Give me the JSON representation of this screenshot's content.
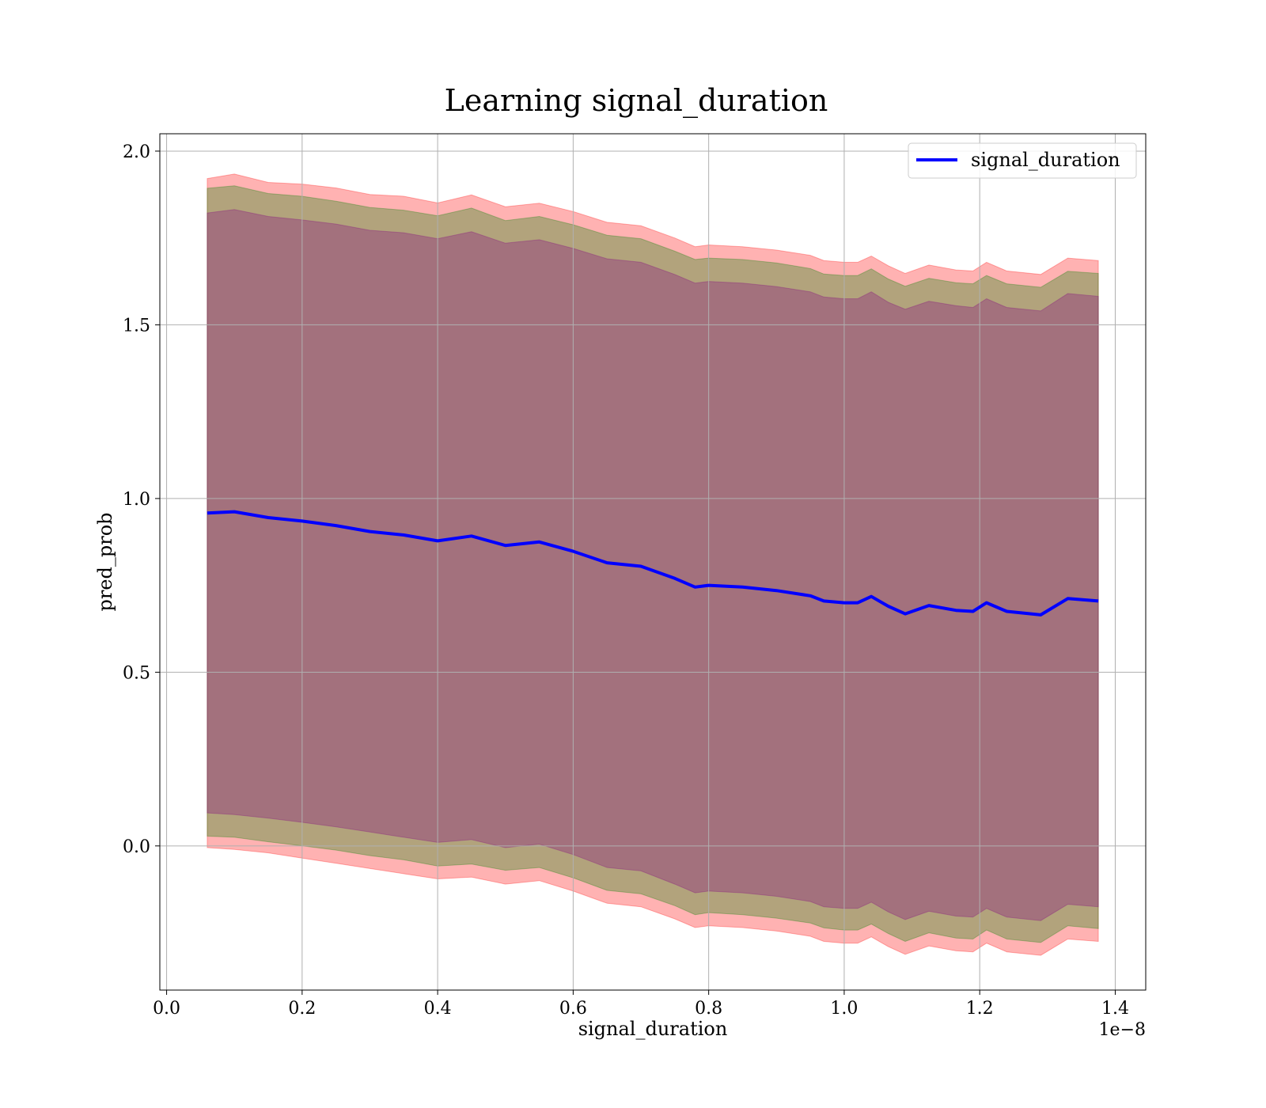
{
  "chart_data": {
    "type": "area",
    "title": "Learning signal_duration",
    "xlabel": "signal_duration",
    "ylabel": "pred_prob",
    "x_offset_label": "1e−8",
    "xlim": [
      -0.01,
      1.445
    ],
    "ylim": [
      -0.415,
      2.05
    ],
    "x_ticks": [
      0.0,
      0.2,
      0.4,
      0.6,
      0.8,
      1.0,
      1.2,
      1.4
    ],
    "x_tick_labels": [
      "0.0",
      "0.2",
      "0.4",
      "0.6",
      "0.8",
      "1.0",
      "1.2",
      "1.4"
    ],
    "y_ticks": [
      0.0,
      0.5,
      1.0,
      1.5,
      2.0
    ],
    "y_tick_labels": [
      "0.0",
      "0.5",
      "1.0",
      "1.5",
      "2.0"
    ],
    "grid": true,
    "legend_position": "top-right",
    "x": [
      0.06,
      0.1,
      0.15,
      0.2,
      0.25,
      0.3,
      0.35,
      0.4,
      0.45,
      0.5,
      0.55,
      0.6,
      0.65,
      0.7,
      0.75,
      0.78,
      0.8,
      0.85,
      0.9,
      0.95,
      0.97,
      1.0,
      1.02,
      1.04,
      1.065,
      1.09,
      1.125,
      1.165,
      1.19,
      1.21,
      1.24,
      1.29,
      1.33,
      1.375
    ],
    "series": [
      {
        "name": "signal_duration",
        "values": [
          0.958,
          0.962,
          0.945,
          0.935,
          0.922,
          0.905,
          0.895,
          0.878,
          0.892,
          0.865,
          0.875,
          0.848,
          0.815,
          0.805,
          0.77,
          0.745,
          0.75,
          0.745,
          0.735,
          0.72,
          0.705,
          0.7,
          0.7,
          0.718,
          0.69,
          0.668,
          0.692,
          0.678,
          0.675,
          0.7,
          0.675,
          0.665,
          0.712,
          0.705
        ],
        "color": "#0000ff"
      }
    ],
    "bands": [
      {
        "lower": [
          -0.005,
          -0.01,
          -0.02,
          -0.035,
          -0.05,
          -0.065,
          -0.08,
          -0.095,
          -0.09,
          -0.11,
          -0.1,
          -0.13,
          -0.165,
          -0.175,
          -0.21,
          -0.235,
          -0.23,
          -0.235,
          -0.245,
          -0.26,
          -0.275,
          -0.28,
          -0.28,
          -0.262,
          -0.29,
          -0.312,
          -0.288,
          -0.302,
          -0.305,
          -0.28,
          -0.305,
          -0.315,
          -0.268,
          -0.275
        ],
        "upper": [
          1.921,
          1.934,
          1.91,
          1.905,
          1.894,
          1.875,
          1.87,
          1.851,
          1.874,
          1.84,
          1.85,
          1.826,
          1.795,
          1.785,
          1.75,
          1.725,
          1.73,
          1.725,
          1.715,
          1.7,
          1.685,
          1.68,
          1.68,
          1.698,
          1.67,
          1.648,
          1.672,
          1.658,
          1.655,
          1.68,
          1.655,
          1.645,
          1.692,
          1.685
        ],
        "color": "#ff0000"
      },
      {
        "lower": [
          0.028,
          0.025,
          0.012,
          0.0,
          -0.012,
          -0.028,
          -0.04,
          -0.058,
          -0.052,
          -0.07,
          -0.062,
          -0.092,
          -0.128,
          -0.138,
          -0.172,
          -0.198,
          -0.192,
          -0.198,
          -0.208,
          -0.222,
          -0.236,
          -0.242,
          -0.242,
          -0.225,
          -0.252,
          -0.275,
          -0.25,
          -0.265,
          -0.268,
          -0.242,
          -0.268,
          -0.278,
          -0.23,
          -0.238
        ],
        "upper": [
          1.893,
          1.9,
          1.878,
          1.87,
          1.856,
          1.838,
          1.83,
          1.814,
          1.836,
          1.8,
          1.812,
          1.788,
          1.758,
          1.748,
          1.712,
          1.688,
          1.692,
          1.688,
          1.678,
          1.662,
          1.646,
          1.642,
          1.642,
          1.661,
          1.632,
          1.611,
          1.634,
          1.621,
          1.618,
          1.642,
          1.618,
          1.608,
          1.654,
          1.648
        ],
        "color": "#008000"
      },
      {
        "lower": [
          0.095,
          0.09,
          0.08,
          0.068,
          0.055,
          0.04,
          0.025,
          0.01,
          0.018,
          -0.005,
          0.005,
          -0.025,
          -0.062,
          -0.072,
          -0.11,
          -0.135,
          -0.13,
          -0.135,
          -0.145,
          -0.16,
          -0.175,
          -0.18,
          -0.18,
          -0.162,
          -0.19,
          -0.212,
          -0.188,
          -0.202,
          -0.205,
          -0.18,
          -0.205,
          -0.215,
          -0.168,
          -0.175
        ],
        "upper": [
          1.822,
          1.832,
          1.812,
          1.802,
          1.79,
          1.772,
          1.765,
          1.748,
          1.768,
          1.735,
          1.745,
          1.72,
          1.69,
          1.68,
          1.645,
          1.62,
          1.625,
          1.62,
          1.61,
          1.595,
          1.58,
          1.575,
          1.575,
          1.595,
          1.565,
          1.545,
          1.568,
          1.555,
          1.55,
          1.575,
          1.55,
          1.54,
          1.59,
          1.582
        ],
        "color": "#800080"
      }
    ]
  }
}
